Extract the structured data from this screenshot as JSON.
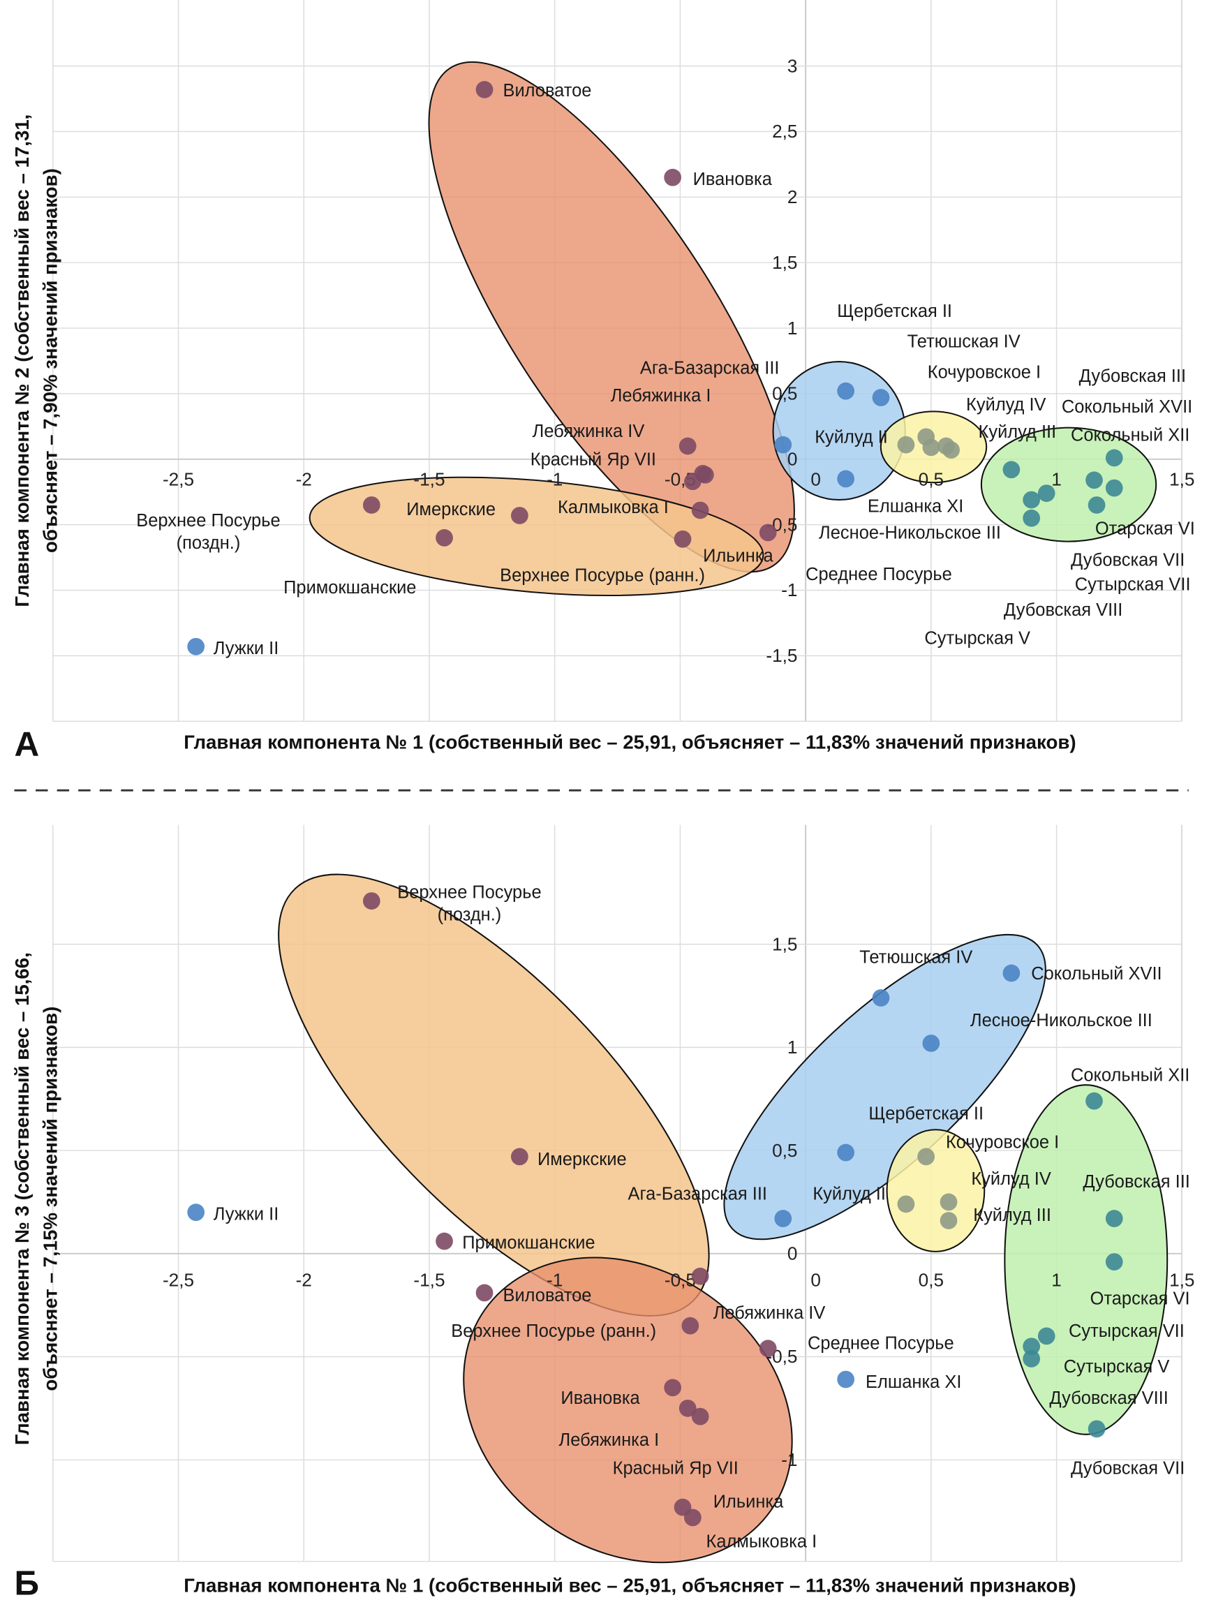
{
  "colors": {
    "red_group": "#e88f6c",
    "orange_group": "#f5c48c",
    "blue_group": "#a8cff0",
    "yellow_group": "#fcf2a6",
    "green_group": "#bff0ae",
    "point_red": "#7d4a64",
    "point_blue": "#4a84c4",
    "point_yellow": "#8e9a86",
    "point_green": "#3d8896"
  },
  "separator": "dashed",
  "chart_data": [
    {
      "panel_letter": "А",
      "type": "scatter",
      "xlabel": "Главная компонента № 1 (собственный вес – 25,91, объясняет – 11,83% значений признаков)",
      "ylabel": [
        "Главная компонента № 2 (собственный вес – 17,31,",
        "объясняет – 7,90% значений признаков)"
      ],
      "xlim": [
        -3.0,
        1.5
      ],
      "ylim": [
        -2.0,
        3.5
      ],
      "grid": true,
      "xticks": [
        "-2,5",
        "-2",
        "-1,5",
        "-1",
        "-0,5",
        "0",
        "0,5",
        "1",
        "1,5"
      ],
      "xtick_values": [
        -2.5,
        -2,
        -1.5,
        -1,
        -0.5,
        0,
        0.5,
        1,
        1.5
      ],
      "yticks": [
        "3",
        "2,5",
        "2",
        "1,5",
        "1",
        "0,5",
        "0",
        "-0,5",
        "-1",
        "-1,5"
      ],
      "ytick_values": [
        3,
        2.5,
        2,
        1.5,
        1,
        0.5,
        0,
        -0.5,
        -1,
        -1.5
      ],
      "groups": [
        "red",
        "orange",
        "blue",
        "yellow",
        "green"
      ],
      "points": [
        {
          "name": "Виловатое",
          "x": -1.28,
          "y": 2.82,
          "group": "red"
        },
        {
          "name": "Ивановка",
          "x": -0.53,
          "y": 2.15,
          "group": "red"
        },
        {
          "name": "Ага-Базарская III",
          "x": -0.09,
          "y": 0.11,
          "group": "blue"
        },
        {
          "name": "Лебяжинка I",
          "x": -0.47,
          "y": 0.1,
          "group": "red"
        },
        {
          "name": "Лебяжинка IV",
          "x": -0.41,
          "y": -0.11,
          "group": "red"
        },
        {
          "name": "Красный Яр VII",
          "x": -0.4,
          "y": -0.12,
          "group": "red"
        },
        {
          "name": "Калмыковка I",
          "x": -0.45,
          "y": -0.17,
          "group": "red"
        },
        {
          "name": "Верхнее Посурье (ранн.)",
          "x": -0.42,
          "y": -0.39,
          "group": "red"
        },
        {
          "name": "Ильинка",
          "x": -0.49,
          "y": -0.61,
          "group": "red"
        },
        {
          "name": "Среднее Посурье",
          "x": -0.15,
          "y": -0.56,
          "group": "red"
        },
        {
          "name": "Верхнее Посурье (поздн.)",
          "x": -1.73,
          "y": -0.35,
          "group": "red"
        },
        {
          "name": "Имеркские",
          "x": -1.14,
          "y": -0.43,
          "group": "red"
        },
        {
          "name": "Примокшанские",
          "x": -1.44,
          "y": -0.6,
          "group": "red"
        },
        {
          "name": "Лужки II",
          "x": -2.43,
          "y": -1.43,
          "group": "blue"
        },
        {
          "name": "Щербетская II",
          "x": 0.16,
          "y": 0.52,
          "group": "blue"
        },
        {
          "name": "Тетюшская IV",
          "x": 0.3,
          "y": 0.47,
          "group": "blue"
        },
        {
          "name": "Куйлуд II",
          "x": 0.4,
          "y": 0.11,
          "group": "yellow"
        },
        {
          "name": "Елшанка XI",
          "x": 0.16,
          "y": -0.15,
          "group": "blue"
        },
        {
          "name": "Кочуровское I",
          "x": 0.48,
          "y": 0.17,
          "group": "yellow"
        },
        {
          "name": "Лесное-Никольское III",
          "x": 0.5,
          "y": 0.09,
          "group": "yellow"
        },
        {
          "name": "Куйлуд IV",
          "x": 0.56,
          "y": 0.1,
          "group": "yellow"
        },
        {
          "name": "Куйлуд III",
          "x": 0.58,
          "y": 0.07,
          "group": "yellow"
        },
        {
          "name": "Дубовская III",
          "x": 1.23,
          "y": 0.01,
          "group": "green"
        },
        {
          "name": "Сокольный XVII",
          "x": 0.82,
          "y": -0.08,
          "group": "green"
        },
        {
          "name": "Сокольный XII",
          "x": 1.15,
          "y": -0.16,
          "group": "green"
        },
        {
          "name": "Отарская VI",
          "x": 1.23,
          "y": -0.22,
          "group": "green"
        },
        {
          "name": "Дубовская VII",
          "x": 1.16,
          "y": -0.35,
          "group": "green"
        },
        {
          "name": "Сутырская VII",
          "x": 0.96,
          "y": -0.26,
          "group": "green"
        },
        {
          "name": "Дубовская VIII",
          "x": 0.9,
          "y": -0.31,
          "group": "green"
        },
        {
          "name": "Сутырская V",
          "x": 0.9,
          "y": -0.45,
          "group": "green"
        }
      ]
    },
    {
      "panel_letter": "Б",
      "type": "scatter",
      "xlabel": "Главная компонента № 1 (собственный вес – 25,91, объясняет – 11,83% значений признаков)",
      "ylabel": [
        "Главная компонента № 3 (собственный вес – 15,66,",
        "объясняет – 7,15% значений признаков)"
      ],
      "xlim": [
        -3.0,
        1.5
      ],
      "ylim": [
        -1.5,
        2.08
      ],
      "grid": true,
      "xticks": [
        "-2,5",
        "-2",
        "-1,5",
        "-1",
        "-0,5",
        "0",
        "0,5",
        "1",
        "1,5"
      ],
      "xtick_values": [
        -2.5,
        -2,
        -1.5,
        -1,
        -0.5,
        0,
        0.5,
        1,
        1.5
      ],
      "yticks": [
        "1,5",
        "1",
        "0,5",
        "0",
        "-0,5",
        "-1"
      ],
      "ytick_values": [
        1.5,
        1,
        0.5,
        0,
        -0.5,
        -1
      ],
      "groups": [
        "orange",
        "red",
        "blue",
        "yellow",
        "green"
      ],
      "points": [
        {
          "name": "Верхнее Посурье (поздн.)",
          "x": -1.73,
          "y": 1.71,
          "group": "red"
        },
        {
          "name": "Имеркские",
          "x": -1.14,
          "y": 0.47,
          "group": "red"
        },
        {
          "name": "Примокшанские",
          "x": -1.44,
          "y": 0.06,
          "group": "red"
        },
        {
          "name": "Лужки II",
          "x": -2.43,
          "y": 0.2,
          "group": "blue"
        },
        {
          "name": "Виловатое",
          "x": -1.28,
          "y": -0.19,
          "group": "red"
        },
        {
          "name": "Лебяжинка IV",
          "x": -0.42,
          "y": -0.11,
          "group": "red"
        },
        {
          "name": "Верхнее Посурье (ранн.)",
          "x": -0.46,
          "y": -0.35,
          "group": "red"
        },
        {
          "name": "Среднее Посурье",
          "x": -0.15,
          "y": -0.46,
          "group": "red"
        },
        {
          "name": "Ивановка",
          "x": -0.53,
          "y": -0.65,
          "group": "red"
        },
        {
          "name": "Лебяжинка I",
          "x": -0.47,
          "y": -0.75,
          "group": "red"
        },
        {
          "name": "Красный Яр VII",
          "x": -0.42,
          "y": -0.79,
          "group": "red"
        },
        {
          "name": "Ильинка",
          "x": -0.49,
          "y": -1.23,
          "group": "red"
        },
        {
          "name": "Калмыковка I",
          "x": -0.45,
          "y": -1.28,
          "group": "red"
        },
        {
          "name": "Тетюшская IV",
          "x": 0.3,
          "y": 1.24,
          "group": "blue"
        },
        {
          "name": "Сокольный XVII",
          "x": 0.82,
          "y": 1.36,
          "group": "blue"
        },
        {
          "name": "Лесное-Никольское III",
          "x": 0.5,
          "y": 1.02,
          "group": "blue"
        },
        {
          "name": "Щербетская II",
          "x": 0.16,
          "y": 0.49,
          "group": "blue"
        },
        {
          "name": "Ага-Базарская III",
          "x": -0.09,
          "y": 0.17,
          "group": "blue"
        },
        {
          "name": "Куйлуд II",
          "x": 0.4,
          "y": 0.24,
          "group": "yellow"
        },
        {
          "name": "Кочуровское I",
          "x": 0.48,
          "y": 0.47,
          "group": "yellow"
        },
        {
          "name": "Куйлуд IV",
          "x": 0.57,
          "y": 0.25,
          "group": "yellow"
        },
        {
          "name": "Куйлуд III",
          "x": 0.57,
          "y": 0.16,
          "group": "yellow"
        },
        {
          "name": "Елшанка XI",
          "x": 0.16,
          "y": -0.61,
          "group": "blue"
        },
        {
          "name": "Сокольный XII",
          "x": 1.15,
          "y": 0.74,
          "group": "green"
        },
        {
          "name": "Дубовская III",
          "x": 1.23,
          "y": 0.17,
          "group": "green"
        },
        {
          "name": "Отарская VI",
          "x": 1.23,
          "y": -0.04,
          "group": "green"
        },
        {
          "name": "Сутырская VII",
          "x": 0.96,
          "y": -0.4,
          "group": "green"
        },
        {
          "name": "Сутырская V",
          "x": 0.9,
          "y": -0.45,
          "group": "green"
        },
        {
          "name": "Дубовская VIII",
          "x": 0.9,
          "y": -0.51,
          "group": "green"
        },
        {
          "name": "Дубовская VII",
          "x": 1.16,
          "y": -0.85,
          "group": "green"
        }
      ]
    }
  ]
}
